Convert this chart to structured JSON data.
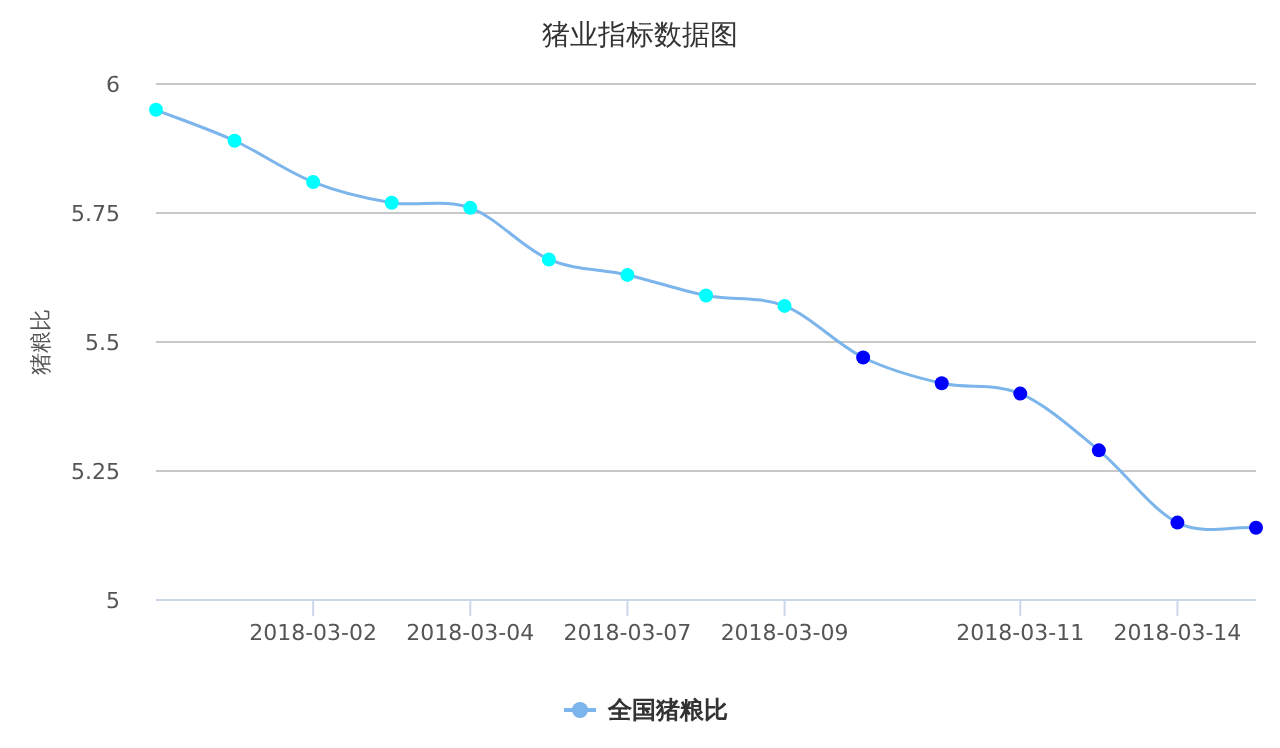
{
  "chart_data": {
    "type": "line",
    "title": "猪业指标数据图",
    "ylabel": "猪粮比",
    "categories": [
      null,
      null,
      "2018-03-02",
      null,
      "2018-03-04",
      null,
      "2018-03-07",
      null,
      "2018-03-09",
      null,
      null,
      "2018-03-11",
      null,
      "2018-03-14",
      null
    ],
    "series": [
      {
        "name": "全国猪粮比",
        "color": "#7cb5ec",
        "colors": [
          "#00ffff",
          "#00ffff",
          "#00ffff",
          "#00ffff",
          "#00ffff",
          "#00ffff",
          "#00ffff",
          "#00ffff",
          "#00ffff",
          "#0000ff",
          "#0000ff",
          "#0000ff",
          "#0000ff",
          "#0000ff",
          "#0000ff"
        ],
        "values": [
          5.95,
          5.89,
          5.81,
          5.77,
          5.76,
          5.66,
          5.63,
          5.59,
          5.57,
          5.47,
          5.42,
          5.4,
          5.29,
          5.15,
          5.14
        ]
      }
    ],
    "ylim": [
      5,
      6
    ],
    "yticks": [
      5,
      5.25,
      5.5,
      5.75,
      6
    ],
    "grid": "y",
    "legend": "bottom",
    "marker": "circle"
  }
}
